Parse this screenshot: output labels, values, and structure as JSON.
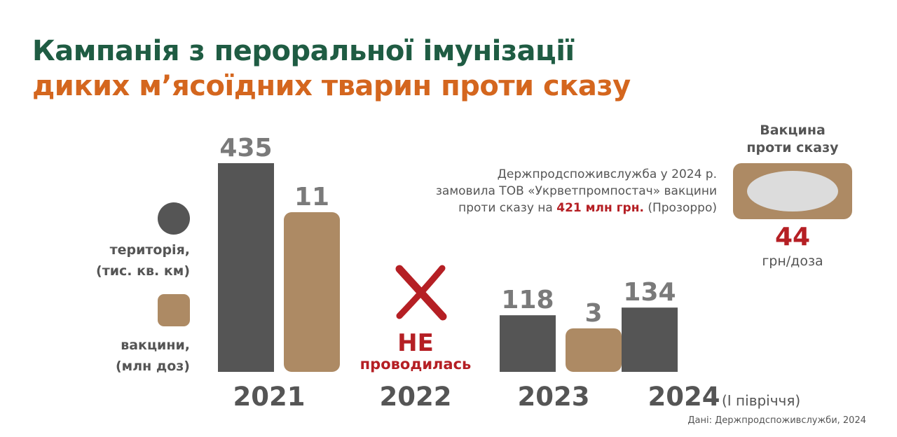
{
  "title": {
    "line1": "Кампанія з пероральної імунізації",
    "line2": "диких м’ясоїдних тварин проти сказу"
  },
  "legend": {
    "territory_line1": "територія,",
    "territory_line2": "(тис. кв. км)",
    "vaccines_line1": "вакцини,",
    "vaccines_line2": "(млн доз)"
  },
  "not_held": {
    "line1": "НЕ",
    "line2": "проводилась"
  },
  "half_year_note": "(І півріччя)",
  "note": {
    "line1": "Держпродспоживслужба у 2024 р.",
    "line2": "замовила ТОВ «Укрветпромпостач» вакцини",
    "line3_pre": "проти сказу на ",
    "line3_highlight": "421 млн грн.",
    "line3_post": " (Прозорро)"
  },
  "vaccine_panel": {
    "heading_line1": "Вакцина",
    "heading_line2": "проти сказу",
    "price": "44",
    "price_unit": "грн/доза"
  },
  "source": "Дані: Держпродспоживслужби, 2024",
  "colors": {
    "title_green": "#1f5c43",
    "title_orange": "#d4661e",
    "territory": "#555555",
    "vaccines": "#ad8a64",
    "highlight_red": "#b51f24",
    "label_grey": "#7a7a7a"
  },
  "chart_data": {
    "type": "bar",
    "categories": [
      "2021",
      "2022",
      "2023",
      "2024"
    ],
    "series": [
      {
        "name": "територія, (тис. кв. км)",
        "values": [
          435,
          null,
          118,
          134
        ]
      },
      {
        "name": "вакцини, (млн доз)",
        "values": [
          11,
          null,
          3,
          null
        ]
      }
    ],
    "data_labels": {
      "територія, (тис. кв. км)": [
        "435",
        "",
        "118",
        "134"
      ],
      "вакцини, (млн доз)": [
        "11",
        "",
        "3",
        ""
      ]
    },
    "legend": "left"
  }
}
